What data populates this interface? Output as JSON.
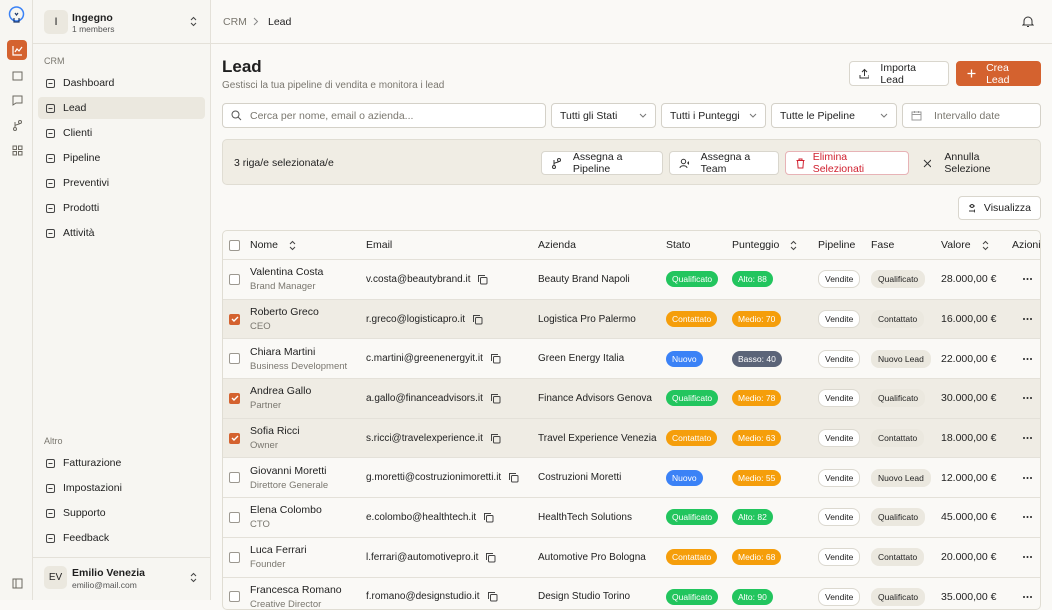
{
  "sidebar": {
    "workspace": {
      "initial": "I",
      "name": "Ingegno",
      "members": "1 members"
    },
    "section_label": "CRM",
    "nav": [
      {
        "label": "Dashboard",
        "active": false
      },
      {
        "label": "Lead",
        "active": true
      },
      {
        "label": "Clienti",
        "active": false
      },
      {
        "label": "Pipeline",
        "active": false
      },
      {
        "label": "Preventivi",
        "active": false
      },
      {
        "label": "Prodotti",
        "active": false
      },
      {
        "label": "Attività",
        "active": false
      }
    ],
    "other_label": "Altro",
    "other_nav": [
      {
        "label": "Fatturazione",
        "active": false
      },
      {
        "label": "Impostazioni",
        "active": false
      },
      {
        "label": "Supporto",
        "active": false
      },
      {
        "label": "Feedback",
        "active": false
      }
    ],
    "user": {
      "initials": "EV",
      "name": "Emilio Venezia",
      "email": "emilio@mail.com"
    }
  },
  "breadcrumb": [
    "CRM",
    "Lead"
  ],
  "header": {
    "title": "Lead",
    "subtitle": "Gestisci la tua pipeline di vendita e monitora i lead",
    "import_button": "Importa Lead",
    "create_button": "Crea Lead"
  },
  "filters": {
    "search_placeholder": "Cerca per nome, email o azienda...",
    "status": "Tutti gli Stati",
    "score": "Tutti i Punteggi",
    "pipeline": "Tutte le Pipeline",
    "date_placeholder": "Intervallo date"
  },
  "selection_bar": {
    "count": "3 riga/e selezionata/e",
    "assign_pipeline": "Assegna a Pipeline",
    "assign_team": "Assegna a Team",
    "delete": "Elimina Selezionati",
    "cancel": "Annulla Selezione"
  },
  "view_button": "Visualizza",
  "table": {
    "columns": [
      {
        "label": "Nome",
        "sortable": true
      },
      {
        "label": "Email",
        "sortable": false
      },
      {
        "label": "Azienda",
        "sortable": false
      },
      {
        "label": "Stato",
        "sortable": false
      },
      {
        "label": "Punteggio",
        "sortable": true
      },
      {
        "label": "Pipeline",
        "sortable": false
      },
      {
        "label": "Fase",
        "sortable": false
      },
      {
        "label": "Valore",
        "sortable": true
      },
      {
        "label": "Azioni",
        "sortable": false
      }
    ],
    "rows": [
      {
        "name": "Valentina Costa",
        "role": "Brand Manager",
        "email": "v.costa@beautybrand.it",
        "company": "Beauty Brand Napoli",
        "status": "Qualificato",
        "status_color": "#22c55e",
        "score": "Alto: 88",
        "score_color": "#22c55e",
        "pipeline": "Vendite",
        "stage": "Qualificato",
        "value": "28.000,00 €",
        "selected": false
      },
      {
        "name": "Roberto Greco",
        "role": "CEO",
        "email": "r.greco@logisticapro.it",
        "company": "Logistica Pro Palermo",
        "status": "Contattato",
        "status_color": "#f59e0b",
        "score": "Medio: 70",
        "score_color": "#f59e0b",
        "pipeline": "Vendite",
        "stage": "Contattato",
        "value": "16.000,00 €",
        "selected": true
      },
      {
        "name": "Chiara Martini",
        "role": "Business Development",
        "email": "c.martini@greenenergyit.it",
        "company": "Green Energy Italia",
        "status": "Nuovo",
        "status_color": "#3b82f6",
        "score": "Basso: 40",
        "score_color": "#5b6478",
        "pipeline": "Vendite",
        "stage": "Nuovo Lead",
        "value": "22.000,00 €",
        "selected": false
      },
      {
        "name": "Andrea Gallo",
        "role": "Partner",
        "email": "a.gallo@financeadvisors.it",
        "company": "Finance Advisors Genova",
        "status": "Qualificato",
        "status_color": "#22c55e",
        "score": "Medio: 78",
        "score_color": "#f59e0b",
        "pipeline": "Vendite",
        "stage": "Qualificato",
        "value": "30.000,00 €",
        "selected": true
      },
      {
        "name": "Sofia Ricci",
        "role": "Owner",
        "email": "s.ricci@travelexperience.it",
        "company": "Travel Experience Venezia",
        "status": "Contattato",
        "status_color": "#f59e0b",
        "score": "Medio: 63",
        "score_color": "#f59e0b",
        "pipeline": "Vendite",
        "stage": "Contattato",
        "value": "18.000,00 €",
        "selected": true
      },
      {
        "name": "Giovanni Moretti",
        "role": "Direttore Generale",
        "email": "g.moretti@costruzionimoretti.it",
        "company": "Costruzioni Moretti",
        "status": "Nuovo",
        "status_color": "#3b82f6",
        "score": "Medio: 55",
        "score_color": "#f59e0b",
        "pipeline": "Vendite",
        "stage": "Nuovo Lead",
        "value": "12.000,00 €",
        "selected": false
      },
      {
        "name": "Elena Colombo",
        "role": "CTO",
        "email": "e.colombo@healthtech.it",
        "company": "HealthTech Solutions",
        "status": "Qualificato",
        "status_color": "#22c55e",
        "score": "Alto: 82",
        "score_color": "#22c55e",
        "pipeline": "Vendite",
        "stage": "Qualificato",
        "value": "45.000,00 €",
        "selected": false
      },
      {
        "name": "Luca Ferrari",
        "role": "Founder",
        "email": "l.ferrari@automotivepro.it",
        "company": "Automotive Pro Bologna",
        "status": "Contattato",
        "status_color": "#f59e0b",
        "score": "Medio: 68",
        "score_color": "#f59e0b",
        "pipeline": "Vendite",
        "stage": "Contattato",
        "value": "20.000,00 €",
        "selected": false
      },
      {
        "name": "Francesca Romano",
        "role": "Creative Director",
        "email": "f.romano@designstudio.it",
        "company": "Design Studio Torino",
        "status": "Qualificato",
        "status_color": "#22c55e",
        "score": "Alto: 90",
        "score_color": "#22c55e",
        "pipeline": "Vendite",
        "stage": "Qualificato",
        "value": "35.000,00 €",
        "selected": false
      }
    ]
  }
}
